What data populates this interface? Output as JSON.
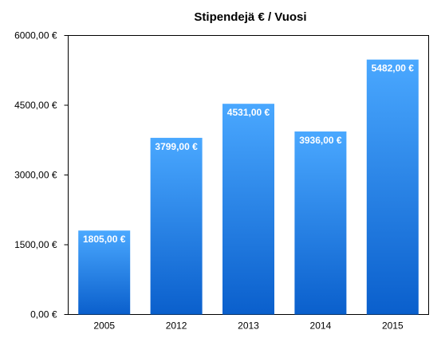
{
  "chart_data": {
    "type": "bar",
    "title": "Stipendejä € / Vuosi",
    "xlabel": "",
    "ylabel": "",
    "categories": [
      "2005",
      "2012",
      "2013",
      "2014",
      "2015"
    ],
    "values": [
      1805,
      3799,
      4531,
      3936,
      5482
    ],
    "value_labels": [
      "1805,00 €",
      "3799,00 €",
      "4531,00 €",
      "3936,00 €",
      "5482,00 €"
    ],
    "ylim": [
      0,
      6000
    ],
    "y_ticks": [
      0,
      1500,
      3000,
      4500,
      6000
    ],
    "y_tick_labels": [
      "0,00 €",
      "1500,00 €",
      "3000,00 €",
      "4500,00 €",
      "6000,00 €"
    ],
    "grid": false,
    "legend": "none",
    "colors": {
      "bar_top": "#4aa8ff",
      "bar_bottom": "#0a5fcc",
      "axis": "#000000"
    }
  }
}
